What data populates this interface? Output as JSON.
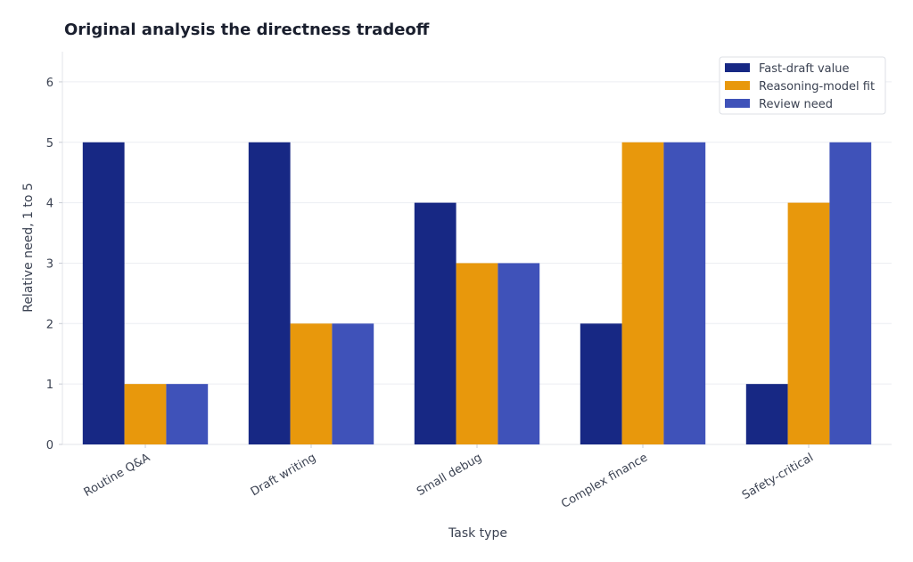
{
  "chart_data": {
    "type": "bar",
    "title": "Original analysis the directness tradeoff",
    "xlabel": "Task type",
    "ylabel": "Relative need, 1 to 5",
    "categories": [
      "Routine Q&A",
      "Draft writing",
      "Small debug",
      "Complex finance",
      "Safety-critical"
    ],
    "series": [
      {
        "name": "Fast-draft value",
        "values": [
          5,
          5,
          4,
          2,
          1
        ],
        "color": "#172884"
      },
      {
        "name": "Reasoning-model fit",
        "values": [
          1,
          2,
          3,
          5,
          4
        ],
        "color": "#e8980c"
      },
      {
        "name": "Review need",
        "values": [
          1,
          2,
          3,
          5,
          5
        ],
        "color": "#3f52b9"
      }
    ],
    "yticks": [
      "0",
      "1",
      "2",
      "3",
      "4",
      "5",
      "6"
    ],
    "ylim": [
      0,
      6.5
    ],
    "grid": true,
    "legend_position": "top-right",
    "x_tick_rotation": "angled"
  }
}
